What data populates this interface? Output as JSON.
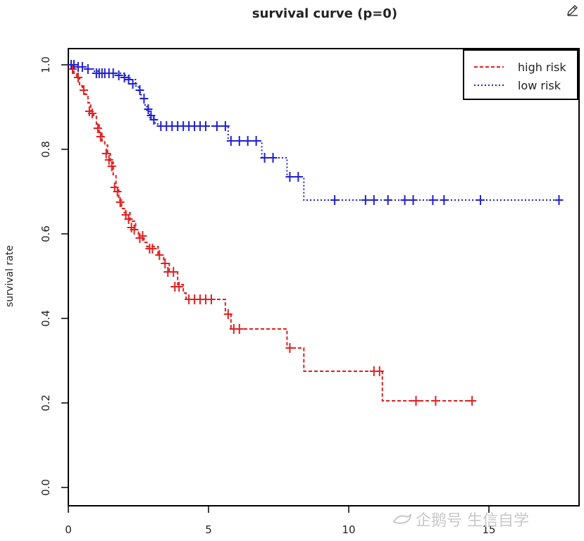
{
  "chart_data": {
    "type": "line",
    "title": "survival curve (p=0)",
    "xlabel": "",
    "ylabel": "survival rate",
    "xlim": [
      0,
      18
    ],
    "ylim": [
      0,
      1.0
    ],
    "x_ticks": [
      "0",
      "5",
      "10",
      "15"
    ],
    "x_tick_values": [
      0,
      5,
      10,
      15
    ],
    "y_ticks": [
      "0.0",
      "0.2",
      "0.4",
      "0.6",
      "0.8",
      "1.0"
    ],
    "y_tick_values": [
      0.0,
      0.2,
      0.4,
      0.6,
      0.8,
      1.0
    ],
    "legend_position": "top-right",
    "series": [
      {
        "name": "high risk",
        "color": "#e02020",
        "line_style": "dashed",
        "steps": [
          [
            0,
            1.0
          ],
          [
            0.1,
            0.99
          ],
          [
            0.2,
            0.98
          ],
          [
            0.3,
            0.97
          ],
          [
            0.4,
            0.95
          ],
          [
            0.5,
            0.94
          ],
          [
            0.6,
            0.93
          ],
          [
            0.7,
            0.91
          ],
          [
            0.8,
            0.89
          ],
          [
            0.9,
            0.88
          ],
          [
            1.0,
            0.86
          ],
          [
            1.1,
            0.84
          ],
          [
            1.2,
            0.82
          ],
          [
            1.3,
            0.81
          ],
          [
            1.4,
            0.79
          ],
          [
            1.5,
            0.77
          ],
          [
            1.6,
            0.74
          ],
          [
            1.7,
            0.71
          ],
          [
            1.8,
            0.68
          ],
          [
            1.9,
            0.66
          ],
          [
            2.0,
            0.65
          ],
          [
            2.2,
            0.63
          ],
          [
            2.4,
            0.61
          ],
          [
            2.5,
            0.59
          ],
          [
            2.7,
            0.58
          ],
          [
            2.8,
            0.57
          ],
          [
            3.2,
            0.55
          ],
          [
            3.4,
            0.53
          ],
          [
            3.6,
            0.51
          ],
          [
            3.9,
            0.48
          ],
          [
            4.1,
            0.46
          ],
          [
            4.2,
            0.445
          ],
          [
            5.6,
            0.41
          ],
          [
            5.8,
            0.375
          ],
          [
            7.8,
            0.33
          ],
          [
            8.4,
            0.275
          ],
          [
            11.2,
            0.205
          ],
          [
            14.5,
            0.205
          ]
        ],
        "censored": [
          [
            0.15,
            0.99
          ],
          [
            0.35,
            0.97
          ],
          [
            0.55,
            0.94
          ],
          [
            0.75,
            0.89
          ],
          [
            0.85,
            0.885
          ],
          [
            1.05,
            0.85
          ],
          [
            1.15,
            0.83
          ],
          [
            1.35,
            0.79
          ],
          [
            1.45,
            0.775
          ],
          [
            1.55,
            0.76
          ],
          [
            1.65,
            0.71
          ],
          [
            1.75,
            0.7
          ],
          [
            1.85,
            0.675
          ],
          [
            2.05,
            0.645
          ],
          [
            2.15,
            0.635
          ],
          [
            2.25,
            0.615
          ],
          [
            2.35,
            0.61
          ],
          [
            2.55,
            0.59
          ],
          [
            2.65,
            0.595
          ],
          [
            2.9,
            0.565
          ],
          [
            3.0,
            0.565
          ],
          [
            3.25,
            0.55
          ],
          [
            3.45,
            0.53
          ],
          [
            3.55,
            0.51
          ],
          [
            3.75,
            0.51
          ],
          [
            3.8,
            0.475
          ],
          [
            3.95,
            0.475
          ],
          [
            4.3,
            0.445
          ],
          [
            4.5,
            0.445
          ],
          [
            4.7,
            0.445
          ],
          [
            4.9,
            0.445
          ],
          [
            5.1,
            0.445
          ],
          [
            5.7,
            0.41
          ],
          [
            5.9,
            0.375
          ],
          [
            6.1,
            0.375
          ],
          [
            7.9,
            0.33
          ],
          [
            10.9,
            0.275
          ],
          [
            11.1,
            0.275
          ],
          [
            12.4,
            0.205
          ],
          [
            13.1,
            0.205
          ],
          [
            14.4,
            0.205
          ]
        ]
      },
      {
        "name": "low risk",
        "color": "#2020d0",
        "line_style": "dotted",
        "steps": [
          [
            0,
            1.0
          ],
          [
            0.3,
            0.995
          ],
          [
            0.6,
            0.99
          ],
          [
            0.9,
            0.985
          ],
          [
            1.1,
            0.98
          ],
          [
            2.0,
            0.975
          ],
          [
            2.2,
            0.965
          ],
          [
            2.4,
            0.95
          ],
          [
            2.5,
            0.935
          ],
          [
            2.6,
            0.92
          ],
          [
            2.7,
            0.905
          ],
          [
            2.8,
            0.89
          ],
          [
            2.9,
            0.875
          ],
          [
            3.1,
            0.86
          ],
          [
            3.3,
            0.855
          ],
          [
            5.7,
            0.82
          ],
          [
            6.9,
            0.78
          ],
          [
            7.8,
            0.735
          ],
          [
            8.4,
            0.68
          ],
          [
            17.6,
            0.68
          ]
        ],
        "censored": [
          [
            0.1,
            1.0
          ],
          [
            0.2,
            1.0
          ],
          [
            0.35,
            0.995
          ],
          [
            0.5,
            0.995
          ],
          [
            0.7,
            0.99
          ],
          [
            1.0,
            0.98
          ],
          [
            1.1,
            0.98
          ],
          [
            1.2,
            0.98
          ],
          [
            1.3,
            0.98
          ],
          [
            1.45,
            0.98
          ],
          [
            1.6,
            0.98
          ],
          [
            1.8,
            0.975
          ],
          [
            2.0,
            0.97
          ],
          [
            2.15,
            0.965
          ],
          [
            2.3,
            0.955
          ],
          [
            2.55,
            0.94
          ],
          [
            2.7,
            0.92
          ],
          [
            2.85,
            0.895
          ],
          [
            2.95,
            0.88
          ],
          [
            3.05,
            0.87
          ],
          [
            3.3,
            0.855
          ],
          [
            3.5,
            0.855
          ],
          [
            3.7,
            0.855
          ],
          [
            3.9,
            0.855
          ],
          [
            4.1,
            0.855
          ],
          [
            4.3,
            0.855
          ],
          [
            4.5,
            0.855
          ],
          [
            4.7,
            0.855
          ],
          [
            4.9,
            0.855
          ],
          [
            5.3,
            0.855
          ],
          [
            5.6,
            0.855
          ],
          [
            5.8,
            0.82
          ],
          [
            6.1,
            0.82
          ],
          [
            6.4,
            0.82
          ],
          [
            6.7,
            0.82
          ],
          [
            7.0,
            0.78
          ],
          [
            7.3,
            0.78
          ],
          [
            7.9,
            0.735
          ],
          [
            8.2,
            0.735
          ],
          [
            9.5,
            0.68
          ],
          [
            10.6,
            0.68
          ],
          [
            10.9,
            0.68
          ],
          [
            11.4,
            0.68
          ],
          [
            12.0,
            0.68
          ],
          [
            12.3,
            0.68
          ],
          [
            13.0,
            0.68
          ],
          [
            13.4,
            0.68
          ],
          [
            14.7,
            0.68
          ],
          [
            17.5,
            0.68
          ]
        ]
      }
    ]
  },
  "watermark": {
    "text": "企鹅号 生信自学"
  },
  "icons": {
    "edit": "pencil-edit-icon",
    "watermark_logo": "bird-logo-icon"
  }
}
